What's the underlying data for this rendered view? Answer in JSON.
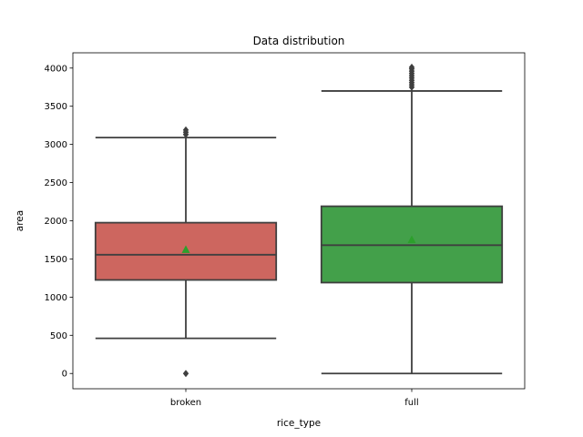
{
  "chart_data": {
    "type": "box",
    "title": "Data distribution",
    "xlabel": "rice_type",
    "ylabel": "area",
    "ylim": [
      -200,
      4200
    ],
    "yticks": [
      0,
      500,
      1000,
      1500,
      2000,
      2500,
      3000,
      3500,
      4000
    ],
    "grid": false,
    "categories": [
      "broken",
      "full"
    ],
    "boxes": [
      {
        "category": "broken",
        "q1": 1225,
        "median": 1555,
        "q3": 1975,
        "whisker_low": 460,
        "whisker_high": 3090,
        "mean": 1620,
        "outliers": [
          0,
          3130,
          3160,
          3190
        ],
        "color": "#cd665f"
      },
      {
        "category": "full",
        "q1": 1190,
        "median": 1680,
        "q3": 2190,
        "whisker_low": 0,
        "whisker_high": 3700,
        "mean": 1750,
        "outliers": [
          3750,
          3780,
          3810,
          3840,
          3870,
          3900,
          3930,
          3960,
          3990,
          4010
        ],
        "color": "#43a04a"
      }
    ],
    "mean_marker_color": "#2ca02c",
    "line_color": "#3f3f3f"
  }
}
